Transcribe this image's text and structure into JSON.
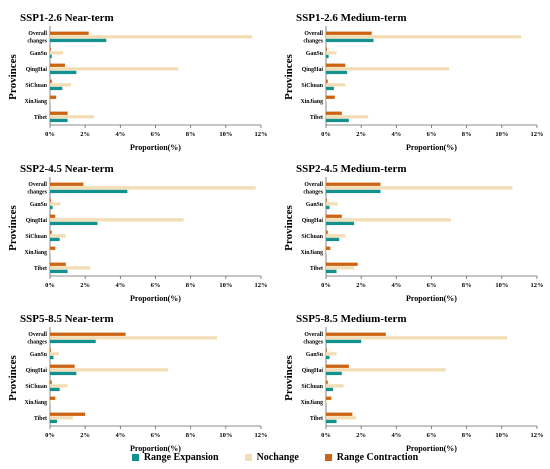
{
  "colors": {
    "expansion": "#12918f",
    "nochange": "#f2ddb5",
    "contraction": "#cc6414",
    "axis": "#666666",
    "text": "#000000"
  },
  "legend": {
    "expansion_label": "Range Expansion",
    "nochange_label": "Nochange",
    "contraction_label": "Range Contraction",
    "position": "bottom-center"
  },
  "chart_data": [
    {
      "type": "bar",
      "orientation": "horizontal",
      "title": "SSP1-2.6 Near-term",
      "xlabel": "Proportion(%)",
      "ylabel": "Provinces",
      "xlim": [
        0,
        12
      ],
      "xticks": [
        "0%",
        "2%",
        "4%",
        "6%",
        "8%",
        "10%",
        "12%"
      ],
      "grid": false,
      "categories": [
        "Overall changes",
        "GanSu",
        "QingHai",
        "SiChuan",
        "XinJiang",
        "Tibet"
      ],
      "series": [
        {
          "name": "Range Contraction",
          "values": [
            2.2,
            0.05,
            0.85,
            0.1,
            0.35,
            1.0
          ]
        },
        {
          "name": "Nochange",
          "values": [
            11.5,
            0.75,
            7.3,
            1.2,
            0.05,
            2.5
          ]
        },
        {
          "name": "Range Expansion",
          "values": [
            3.2,
            0.1,
            1.5,
            0.7,
            0.0,
            1.0
          ]
        }
      ]
    },
    {
      "type": "bar",
      "orientation": "horizontal",
      "title": "SSP1-2.6 Medium-term",
      "xlabel": "Proportion(%)",
      "ylabel": "Provinces",
      "xlim": [
        0,
        12
      ],
      "xticks": [
        "0%",
        "2%",
        "4%",
        "6%",
        "8%",
        "10%",
        "12%"
      ],
      "grid": false,
      "categories": [
        "Overall changes",
        "GanSu",
        "QingHai",
        "SiChuan",
        "XinJiang",
        "Tibet"
      ],
      "series": [
        {
          "name": "Range Contraction",
          "values": [
            2.6,
            0.05,
            1.1,
            0.1,
            0.5,
            0.9
          ]
        },
        {
          "name": "Nochange",
          "values": [
            11.1,
            0.6,
            7.0,
            1.1,
            0.05,
            2.4
          ]
        },
        {
          "name": "Range Expansion",
          "values": [
            2.7,
            0.15,
            1.2,
            0.45,
            0.0,
            1.3
          ]
        }
      ]
    },
    {
      "type": "bar",
      "orientation": "horizontal",
      "title": "SSP2-4.5 Near-term",
      "xlabel": "Proportion(%)",
      "ylabel": "Provinces",
      "xlim": [
        0,
        12
      ],
      "xticks": [
        "0%",
        "2%",
        "4%",
        "6%",
        "8%",
        "10%",
        "12%"
      ],
      "grid": false,
      "categories": [
        "Overall changes",
        "GanSu",
        "QingHai",
        "SiChuan",
        "XinJiang",
        "Tibet"
      ],
      "series": [
        {
          "name": "Range Contraction",
          "values": [
            1.9,
            0.05,
            0.3,
            0.1,
            0.3,
            0.9
          ]
        },
        {
          "name": "Nochange",
          "values": [
            11.7,
            0.6,
            7.6,
            0.9,
            0.05,
            2.3
          ]
        },
        {
          "name": "Range Expansion",
          "values": [
            4.4,
            0.15,
            2.7,
            0.55,
            0.0,
            1.0
          ]
        }
      ]
    },
    {
      "type": "bar",
      "orientation": "horizontal",
      "title": "SSP2-4.5 Medium-term",
      "xlabel": "Proportion(%)",
      "ylabel": "Provinces",
      "xlim": [
        0,
        12
      ],
      "xticks": [
        "0%",
        "2%",
        "4%",
        "6%",
        "8%",
        "10%",
        "12%"
      ],
      "grid": false,
      "categories": [
        "Overall changes",
        "GanSu",
        "QingHai",
        "SiChuan",
        "XinJiang",
        "Tibet"
      ],
      "series": [
        {
          "name": "Range Contraction",
          "values": [
            3.1,
            0.05,
            0.9,
            0.1,
            0.25,
            1.8
          ]
        },
        {
          "name": "Nochange",
          "values": [
            10.6,
            0.65,
            7.1,
            1.1,
            0.05,
            1.6
          ]
        },
        {
          "name": "Range Expansion",
          "values": [
            3.1,
            0.2,
            1.6,
            0.75,
            0.0,
            0.6
          ]
        }
      ]
    },
    {
      "type": "bar",
      "orientation": "horizontal",
      "title": "SSP5-8.5 Near-term",
      "xlabel": "Proportion(%)",
      "ylabel": "Provinces",
      "xlim": [
        0,
        12
      ],
      "xticks": [
        "0%",
        "2%",
        "4%",
        "6%",
        "8%",
        "10%",
        "12%"
      ],
      "grid": false,
      "categories": [
        "Overall changes",
        "GanSu",
        "QingHai",
        "SiChuan",
        "XinJiang",
        "Tibet"
      ],
      "series": [
        {
          "name": "Range Contraction",
          "values": [
            4.3,
            0.05,
            1.4,
            0.1,
            0.3,
            2.0
          ]
        },
        {
          "name": "Nochange",
          "values": [
            9.5,
            0.5,
            6.7,
            1.0,
            0.05,
            1.3
          ]
        },
        {
          "name": "Range Expansion",
          "values": [
            2.6,
            0.2,
            1.5,
            0.55,
            0.0,
            0.4
          ]
        }
      ]
    },
    {
      "type": "bar",
      "orientation": "horizontal",
      "title": "SSP5-8.5 Medium-term",
      "xlabel": "Proportion(%)",
      "ylabel": "Provinces",
      "xlim": [
        0,
        12
      ],
      "xticks": [
        "0%",
        "2%",
        "4%",
        "6%",
        "8%",
        "10%",
        "12%"
      ],
      "grid": false,
      "categories": [
        "Overall changes",
        "GanSu",
        "QingHai",
        "SiChuan",
        "XinJiang",
        "Tibet"
      ],
      "series": [
        {
          "name": "Range Contraction",
          "values": [
            3.4,
            0.05,
            1.3,
            0.1,
            0.3,
            1.5
          ]
        },
        {
          "name": "Nochange",
          "values": [
            10.3,
            0.6,
            6.8,
            1.0,
            0.05,
            1.7
          ]
        },
        {
          "name": "Range Expansion",
          "values": [
            2.0,
            0.2,
            0.9,
            0.4,
            0.0,
            0.6
          ]
        }
      ]
    }
  ]
}
